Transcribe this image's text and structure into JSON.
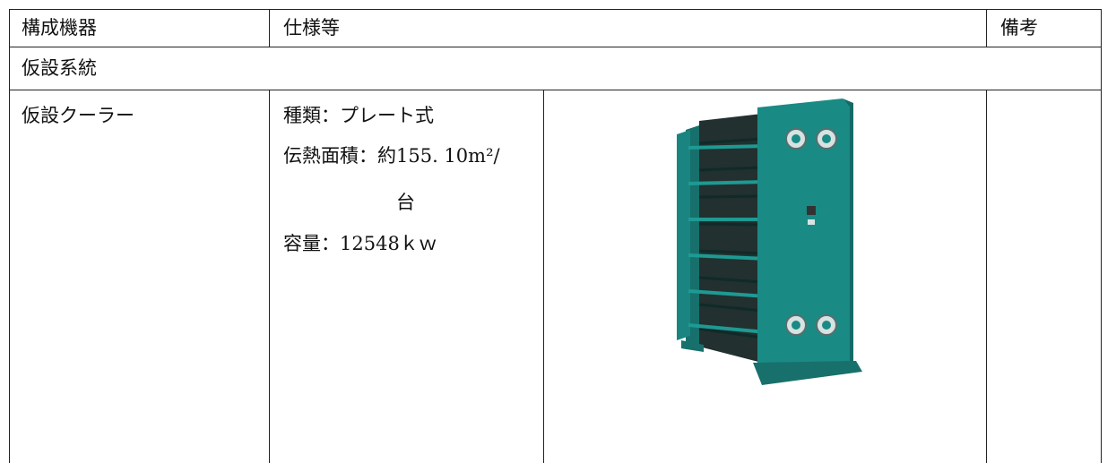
{
  "table": {
    "header": [
      "構成機器",
      "仕様等",
      "備考"
    ],
    "section": "仮設系統",
    "rows": [
      {
        "equipment": "仮設クーラー",
        "spec": [
          "種類：プレート式",
          "伝熱面積：約155. 10m²/",
          "台",
          "容量：12548ｋｗ"
        ]
      }
    ]
  }
}
